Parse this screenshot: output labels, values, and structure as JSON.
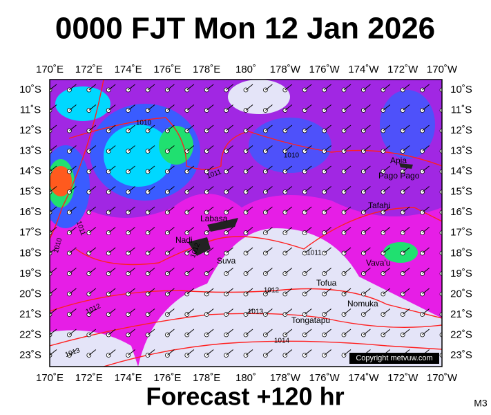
{
  "header": {
    "title": "0000 FJT Mon 12 Jan 2026"
  },
  "axes": {
    "longitudes": [
      "170˚E",
      "172˚E",
      "174˚E",
      "176˚E",
      "178˚E",
      "180˚",
      "178˚W",
      "176˚W",
      "174˚W",
      "172˚W",
      "170˚W"
    ],
    "latitudes": [
      "10˚S",
      "11˚S",
      "12˚S",
      "13˚S",
      "14˚S",
      "15˚S",
      "16˚S",
      "17˚S",
      "18˚S",
      "19˚S",
      "20˚S",
      "21˚S",
      "22˚S",
      "23˚S"
    ]
  },
  "places": [
    "Apia",
    "Pago Pago",
    "Tafahi",
    "Labasa",
    "Nadi",
    "Suva",
    "Vava'u",
    "Tofua",
    "Nomuka",
    "Tongatapu"
  ],
  "isobars": [
    "1010",
    "1011",
    "1011",
    "1010",
    "1012",
    "1010",
    "1011",
    "1012",
    "1012",
    "1013",
    "1014",
    "1013"
  ],
  "copyright": "Copyright metvuw.com",
  "footer": {
    "forecast": "Forecast +120 hr",
    "code": "M3"
  }
}
